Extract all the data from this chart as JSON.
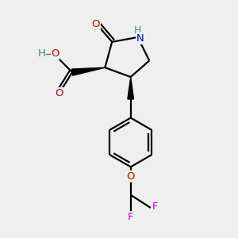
{
  "background_color": "#efefef",
  "atom_color_N": "#0000cc",
  "atom_color_O": "#cc0000",
  "atom_color_F": "#cc00cc",
  "atom_color_H": "#4a8080",
  "line_color": "#000000",
  "line_width": 1.6,
  "font_size_atoms": 9.5,
  "figsize": [
    3.0,
    3.0
  ],
  "dpi": 100,
  "xlim": [
    0,
    10
  ],
  "ylim": [
    0,
    10
  ]
}
